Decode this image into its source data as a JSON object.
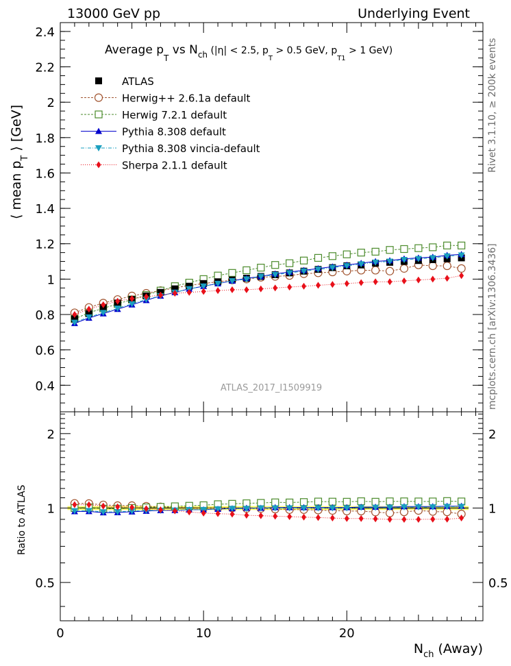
{
  "header": {
    "left": "13000 GeV pp",
    "right": "Underlying Event"
  },
  "side_labels": {
    "upper": "Rivet 3.1.10, ≥ 200k events",
    "lower": "mcplots.cern.ch [arXiv:1306.3436]"
  },
  "chart_data": [
    {
      "type": "line",
      "title": "Average pT vs Nch (|η| < 2.5, pT > 0.5 GeV, pT1 > 1 GeV)",
      "title_parts": {
        "a": "Average p",
        "a_sub": "T",
        "b": " vs N",
        "b_sub": "ch",
        "c": " (|η| < 2.5, p",
        "c_sub": "T",
        "d": " > 0.5 GeV, p",
        "d_sub": "T1",
        "e": " > 1 GeV)"
      },
      "ylabel": "⟨ mean pT ⟩ [GeV]",
      "ylabel_parts": {
        "a": "⟨ mean p",
        "sub": "T",
        "b": " ⟩ [GeV]"
      },
      "xlim": [
        0,
        29.5
      ],
      "ylim": [
        0.25,
        2.45
      ],
      "yticks": [
        0.4,
        0.6,
        0.8,
        1,
        1.2,
        1.4,
        1.6,
        1.8,
        2,
        2.2,
        2.4
      ],
      "ytick_labels": [
        "0.4",
        "0.6",
        "0.8",
        "1",
        "1.2",
        "1.4",
        "1.6",
        "1.8",
        "2",
        "2.2",
        "2.4"
      ],
      "watermark": "ATLAS_2017_I1509919",
      "legend_position": "top-left",
      "x": [
        1,
        2,
        3,
        4,
        5,
        6,
        7,
        8,
        9,
        10,
        11,
        12,
        13,
        14,
        15,
        16,
        17,
        18,
        19,
        20,
        21,
        22,
        23,
        24,
        25,
        26,
        27,
        28
      ],
      "series": [
        {
          "name": "ATLAS",
          "color": "#000000",
          "marker": "filled-square",
          "line": "none",
          "values": [
            0.775,
            0.805,
            0.84,
            0.865,
            0.885,
            0.905,
            0.925,
            0.945,
            0.96,
            0.975,
            0.985,
            0.995,
            1.005,
            1.015,
            1.025,
            1.035,
            1.045,
            1.055,
            1.065,
            1.075,
            1.08,
            1.09,
            1.095,
            1.1,
            1.105,
            1.11,
            1.115,
            1.12
          ]
        },
        {
          "name": "Herwig++ 2.6.1a default",
          "color": "#a0522d",
          "marker": "open-circle",
          "line": "dashed",
          "values": [
            0.81,
            0.84,
            0.865,
            0.885,
            0.905,
            0.92,
            0.935,
            0.95,
            0.965,
            0.975,
            0.985,
            0.995,
            1.0,
            1.01,
            1.015,
            1.02,
            1.03,
            1.035,
            1.04,
            1.045,
            1.05,
            1.05,
            1.045,
            1.06,
            1.08,
            1.075,
            1.075,
            1.06
          ]
        },
        {
          "name": "Herwig 7.2.1 default",
          "color": "#4a8a2a",
          "marker": "open-square",
          "line": "dashed",
          "values": [
            0.775,
            0.81,
            0.835,
            0.86,
            0.885,
            0.91,
            0.935,
            0.96,
            0.98,
            1.0,
            1.02,
            1.035,
            1.05,
            1.065,
            1.08,
            1.09,
            1.105,
            1.12,
            1.13,
            1.14,
            1.15,
            1.155,
            1.165,
            1.17,
            1.175,
            1.18,
            1.19,
            1.19
          ]
        },
        {
          "name": "Pythia 8.308 default",
          "color": "#0000cc",
          "marker": "filled-triangle-up",
          "line": "solid",
          "values": [
            0.75,
            0.78,
            0.805,
            0.83,
            0.855,
            0.88,
            0.905,
            0.925,
            0.945,
            0.96,
            0.975,
            0.99,
            1.005,
            1.015,
            1.03,
            1.04,
            1.05,
            1.06,
            1.07,
            1.08,
            1.09,
            1.1,
            1.105,
            1.115,
            1.12,
            1.125,
            1.135,
            1.14
          ]
        },
        {
          "name": "Pythia 8.308 vincia-default",
          "color": "#1a9fbf",
          "marker": "filled-triangle-down",
          "line": "dashdot",
          "values": [
            0.755,
            0.785,
            0.81,
            0.835,
            0.86,
            0.885,
            0.905,
            0.925,
            0.945,
            0.96,
            0.975,
            0.99,
            1.0,
            1.015,
            1.025,
            1.035,
            1.045,
            1.055,
            1.065,
            1.075,
            1.085,
            1.095,
            1.1,
            1.11,
            1.115,
            1.12,
            1.13,
            1.135
          ]
        },
        {
          "name": "Sherpa 2.1.1 default",
          "color": "#e8101a",
          "marker": "filled-diamond",
          "line": "dotted",
          "values": [
            0.8,
            0.83,
            0.855,
            0.875,
            0.89,
            0.9,
            0.91,
            0.92,
            0.925,
            0.93,
            0.935,
            0.94,
            0.94,
            0.945,
            0.95,
            0.955,
            0.96,
            0.965,
            0.97,
            0.975,
            0.98,
            0.985,
            0.985,
            0.99,
            0.995,
            1.0,
            1.005,
            1.02
          ]
        }
      ]
    },
    {
      "type": "line",
      "ylabel": "Ratio to ATLAS",
      "xlabel": "Nch (Away)",
      "xlabel_parts": {
        "a": "N",
        "sub": "ch",
        "b": " (Away)"
      },
      "xlim": [
        0,
        29.5
      ],
      "ylim": [
        0.35,
        2.45
      ],
      "xticks": [
        0,
        10,
        20
      ],
      "xtick_labels": [
        "0",
        "10",
        "20"
      ],
      "yticks": [
        0.5,
        1,
        2
      ],
      "ytick_labels": [
        "0.5",
        "1",
        "2"
      ],
      "band_color": "#ffff66",
      "x": [
        1,
        2,
        3,
        4,
        5,
        6,
        7,
        8,
        9,
        10,
        11,
        12,
        13,
        14,
        15,
        16,
        17,
        18,
        19,
        20,
        21,
        22,
        23,
        24,
        25,
        26,
        27,
        28
      ],
      "series": [
        {
          "name": "Herwig++ 2.6.1a default",
          "values": [
            1.045,
            1.043,
            1.03,
            1.023,
            1.023,
            1.017,
            1.011,
            1.005,
            1.005,
            1.0,
            1.0,
            1.0,
            0.995,
            0.995,
            0.99,
            0.985,
            0.985,
            0.981,
            0.977,
            0.972,
            0.972,
            0.963,
            0.954,
            0.964,
            0.977,
            0.968,
            0.964,
            0.946
          ]
        },
        {
          "name": "Herwig 7.2.1 default",
          "values": [
            1.0,
            1.006,
            0.994,
            0.994,
            1.0,
            1.006,
            1.011,
            1.016,
            1.021,
            1.026,
            1.036,
            1.04,
            1.045,
            1.049,
            1.054,
            1.053,
            1.057,
            1.062,
            1.061,
            1.06,
            1.065,
            1.06,
            1.064,
            1.064,
            1.063,
            1.063,
            1.067,
            1.063
          ]
        },
        {
          "name": "Pythia 8.308 default",
          "values": [
            0.968,
            0.969,
            0.958,
            0.96,
            0.966,
            0.972,
            0.978,
            0.979,
            0.984,
            0.985,
            0.99,
            0.995,
            1.0,
            1.0,
            1.005,
            1.005,
            1.005,
            1.005,
            1.005,
            1.005,
            1.009,
            1.009,
            1.009,
            1.014,
            1.014,
            1.014,
            1.018,
            1.018
          ]
        },
        {
          "name": "Pythia 8.308 vincia-default",
          "values": [
            0.974,
            0.975,
            0.964,
            0.965,
            0.972,
            0.978,
            0.978,
            0.979,
            0.984,
            0.985,
            0.99,
            0.995,
            0.995,
            1.0,
            1.0,
            1.0,
            1.0,
            1.0,
            1.0,
            1.0,
            1.005,
            1.005,
            1.005,
            1.009,
            1.009,
            1.009,
            1.013,
            1.013
          ]
        },
        {
          "name": "Sherpa 2.1.1 default",
          "values": [
            1.032,
            1.031,
            1.018,
            1.012,
            1.006,
            0.994,
            0.984,
            0.974,
            0.964,
            0.954,
            0.949,
            0.945,
            0.935,
            0.931,
            0.927,
            0.923,
            0.919,
            0.915,
            0.911,
            0.907,
            0.907,
            0.904,
            0.9,
            0.9,
            0.9,
            0.901,
            0.901,
            0.911
          ]
        }
      ]
    }
  ]
}
